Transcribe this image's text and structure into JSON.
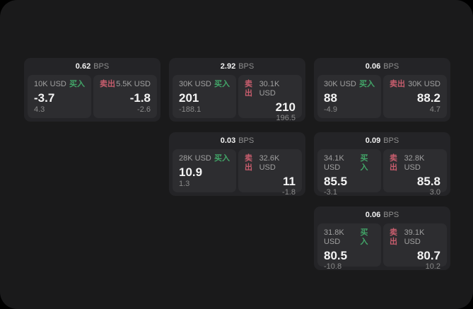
{
  "labels": {
    "buy": "买入",
    "sell": "卖出",
    "bps_unit": "BPS"
  },
  "colors": {
    "background": "#000000",
    "surface": "#1a1a1b",
    "card": "#242427",
    "panel": "#2d2d30",
    "buy_label": "#42a568",
    "sell_label": "#c75d6d",
    "primary_text": "#f4f4f4",
    "muted_text": "#8b8b8b"
  },
  "cards": [
    {
      "row": 1,
      "col": 1,
      "bps": "0.62",
      "buy": {
        "amount": "10K USD",
        "value": "-3.7",
        "delta": "4.3"
      },
      "sell": {
        "amount": "5.5K USD",
        "value": "-1.8",
        "delta": "-2.6"
      }
    },
    {
      "row": 1,
      "col": 2,
      "bps": "2.92",
      "buy": {
        "amount": "30K USD",
        "value": "201",
        "delta": "-188.1"
      },
      "sell": {
        "amount": "30.1K USD",
        "value": "210",
        "delta": "196.5"
      }
    },
    {
      "row": 1,
      "col": 3,
      "bps": "0.06",
      "buy": {
        "amount": "30K USD",
        "value": "88",
        "delta": "-4.9"
      },
      "sell": {
        "amount": "30K USD",
        "value": "88.2",
        "delta": "4.7"
      }
    },
    {
      "row": 2,
      "col": 2,
      "bps": "0.03",
      "buy": {
        "amount": "28K USD",
        "value": "10.9",
        "delta": "1.3"
      },
      "sell": {
        "amount": "32.6K USD",
        "value": "11",
        "delta": "-1.8"
      }
    },
    {
      "row": 2,
      "col": 3,
      "bps": "0.09",
      "buy": {
        "amount": "34.1K USD",
        "value": "85.5",
        "delta": "-3.1"
      },
      "sell": {
        "amount": "32.8K USD",
        "value": "85.8",
        "delta": "3.0"
      }
    },
    {
      "row": 3,
      "col": 3,
      "bps": "0.06",
      "buy": {
        "amount": "31.8K USD",
        "value": "80.5",
        "delta": "-10.8"
      },
      "sell": {
        "amount": "39.1K USD",
        "value": "80.7",
        "delta": "10.2"
      }
    }
  ]
}
